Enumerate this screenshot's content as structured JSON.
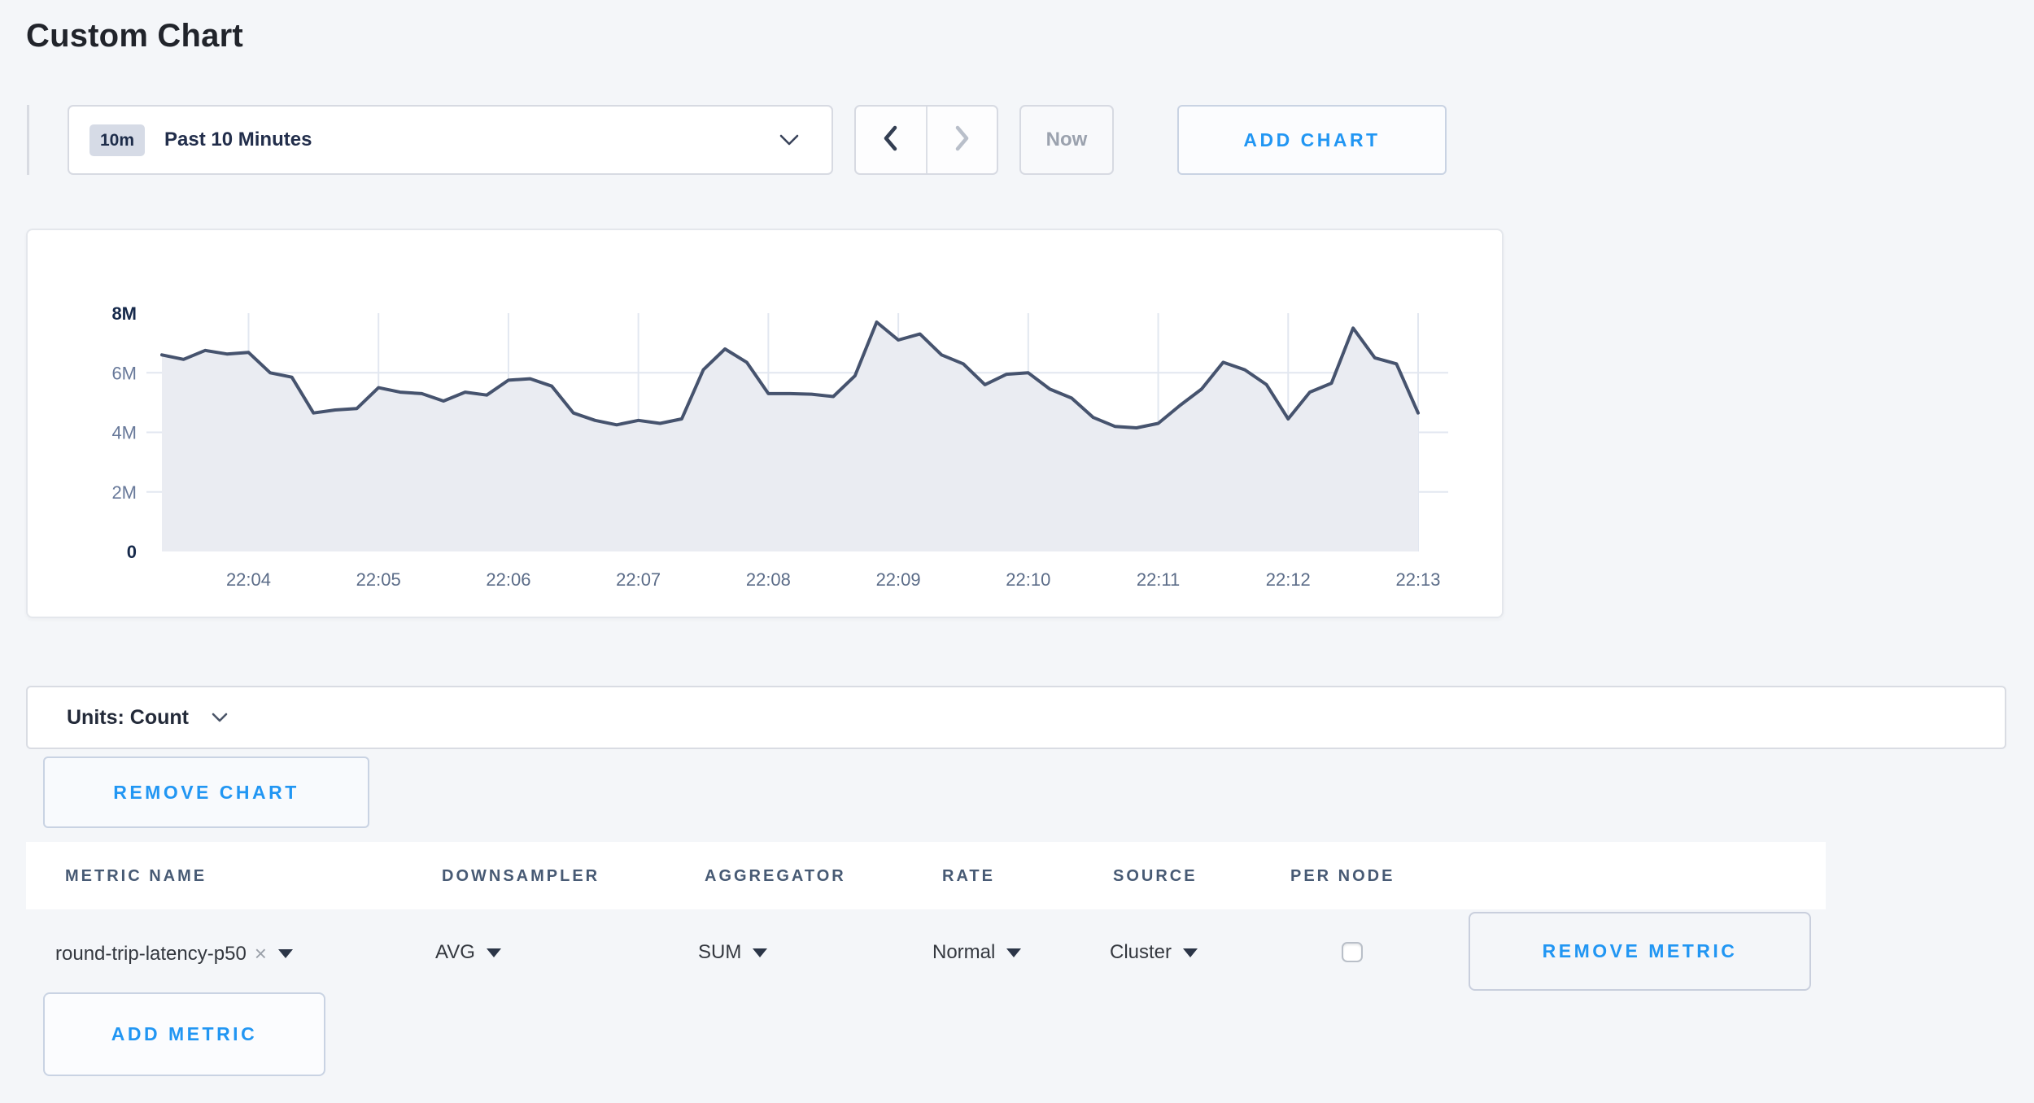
{
  "page": {
    "title": "Custom Chart"
  },
  "toolbar": {
    "time_window_badge": "10m",
    "time_window_label": "Past 10 Minutes",
    "now_label": "Now",
    "add_chart_label": "ADD CHART"
  },
  "chart_card": {
    "units_label": "Units: Count",
    "remove_chart_label": "REMOVE CHART"
  },
  "chart_data": {
    "type": "area",
    "series_name": "round-trip-latency-p50",
    "ylabel": "Count",
    "ylim": [
      0,
      8000000
    ],
    "y_ticks": [
      {
        "value": 8,
        "label": "8M",
        "bold": true
      },
      {
        "value": 6,
        "label": "6M",
        "bold": false
      },
      {
        "value": 4,
        "label": "4M",
        "bold": false
      },
      {
        "value": 2,
        "label": "2M",
        "bold": false
      },
      {
        "value": 0,
        "label": "0",
        "bold": true
      }
    ],
    "x_ticks": [
      "22:04",
      "22:05",
      "22:06",
      "22:07",
      "22:08",
      "22:09",
      "22:10",
      "22:11",
      "22:12",
      "22:13"
    ],
    "x_start_seconds": 200,
    "x_end_seconds": 780,
    "x_tick_start_seconds": 240,
    "x_tick_step_seconds": 60,
    "interval_seconds": 10,
    "grid": true,
    "values_millions": [
      6.6,
      6.45,
      6.75,
      6.63,
      6.68,
      6.0,
      5.85,
      4.65,
      4.75,
      4.8,
      5.5,
      5.35,
      5.3,
      5.05,
      5.35,
      5.25,
      5.75,
      5.8,
      5.55,
      4.65,
      4.4,
      4.25,
      4.4,
      4.3,
      4.45,
      6.1,
      6.8,
      6.35,
      5.3,
      5.3,
      5.28,
      5.2,
      5.9,
      7.7,
      7.1,
      7.3,
      6.6,
      6.3,
      5.6,
      5.95,
      6.0,
      5.45,
      5.15,
      4.5,
      4.2,
      4.15,
      4.3,
      4.9,
      5.45,
      6.35,
      6.1,
      5.6,
      4.45,
      5.35,
      5.65,
      7.5,
      6.5,
      6.3,
      4.65
    ],
    "colors": {
      "line": "#46536e",
      "fill": "#eaecf2",
      "grid": "#e2e7f0",
      "axis_label": "#68799a",
      "axis_label_bold": "#16294b"
    }
  },
  "metrics_table": {
    "columns": [
      "METRIC NAME",
      "DOWNSAMPLER",
      "AGGREGATOR",
      "RATE",
      "SOURCE",
      "PER NODE"
    ],
    "row": {
      "metric_name": "round-trip-latency-p50",
      "clear_glyph": "×",
      "downsampler": "AVG",
      "aggregator": "SUM",
      "rate": "Normal",
      "source": "Cluster",
      "per_node_checked": false,
      "remove_metric_label": "REMOVE METRIC"
    },
    "add_metric_label": "ADD METRIC"
  },
  "colors": {
    "accent_blue": "#2196f3"
  }
}
